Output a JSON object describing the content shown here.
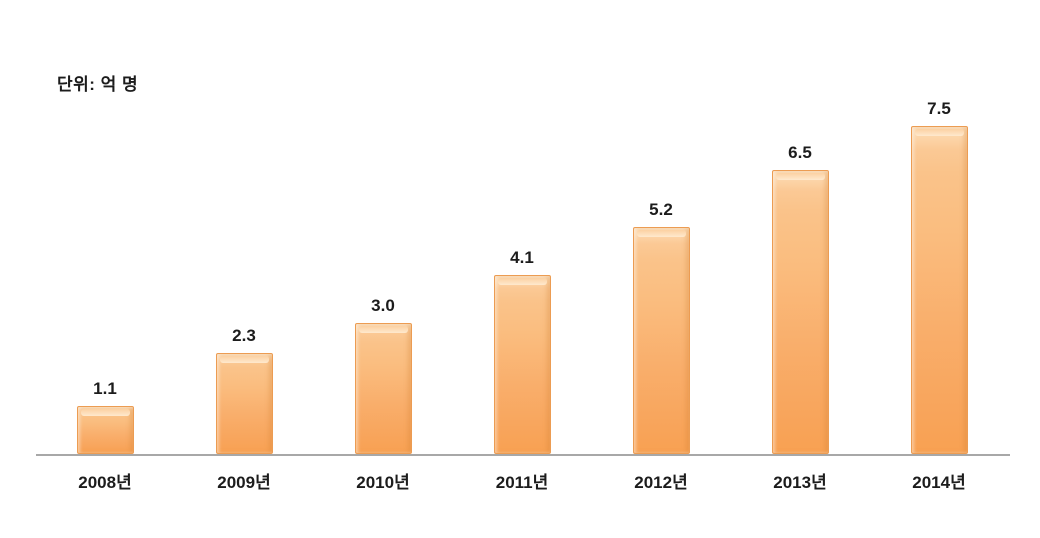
{
  "chart_data": {
    "type": "bar",
    "title": "",
    "unit_label": "단위: 억 명",
    "categories": [
      "2008년",
      "2009년",
      "2010년",
      "2011년",
      "2012년",
      "2013년",
      "2014년"
    ],
    "values": [
      1.1,
      2.3,
      3.0,
      4.1,
      5.2,
      6.5,
      7.5
    ],
    "value_labels": [
      "1.1",
      "2.3",
      "3.0",
      "4.1",
      "5.2",
      "6.5",
      "7.5"
    ],
    "xlabel": "",
    "ylabel": "",
    "ylim": [
      0,
      8
    ],
    "grid": false,
    "legend": false,
    "bar_color_top": "#fccf9e",
    "bar_color_bottom": "#f8a152",
    "bar_border_color": "#ec9c52",
    "axis_line_color": "#a8a8a8",
    "label_color": "#1c1c1c"
  }
}
